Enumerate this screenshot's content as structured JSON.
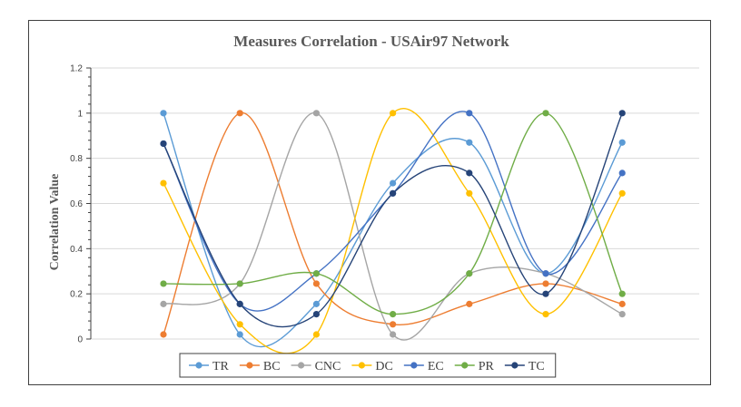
{
  "chart_data": {
    "type": "line",
    "title": "Measures Correlation - USAir97 Network",
    "xlabel": "",
    "ylabel": "Correlation Value",
    "ylim": [
      0,
      1.2
    ],
    "yticks": [
      "0",
      "0.2",
      "0.4",
      "0.6",
      "0.8",
      "1",
      "1.2"
    ],
    "x_count": 7,
    "grid": true,
    "smooth": true,
    "legend_position": "bottom",
    "series": [
      {
        "name": "TR",
        "color": "#5B9BD5",
        "values": [
          1.0,
          0.02,
          0.155,
          0.69,
          0.87,
          0.29,
          0.87
        ]
      },
      {
        "name": "BC",
        "color": "#ED7D31",
        "values": [
          0.02,
          1.0,
          0.245,
          0.065,
          0.155,
          0.245,
          0.155
        ]
      },
      {
        "name": "CNC",
        "color": "#A5A5A5",
        "values": [
          0.155,
          0.245,
          1.0,
          0.02,
          0.29,
          0.29,
          0.11
        ]
      },
      {
        "name": "DC",
        "color": "#FFC000",
        "values": [
          0.69,
          0.065,
          0.02,
          1.0,
          0.645,
          0.11,
          0.645
        ]
      },
      {
        "name": "EC",
        "color": "#4472C4",
        "values": [
          0.865,
          0.155,
          0.29,
          0.645,
          1.0,
          0.29,
          0.735
        ]
      },
      {
        "name": "PR",
        "color": "#70AD47",
        "values": [
          0.245,
          0.245,
          0.29,
          0.11,
          0.29,
          1.0,
          0.2
        ]
      },
      {
        "name": "TC",
        "color": "#264478",
        "values": [
          0.865,
          0.155,
          0.11,
          0.645,
          0.735,
          0.2,
          1.0
        ]
      }
    ]
  }
}
